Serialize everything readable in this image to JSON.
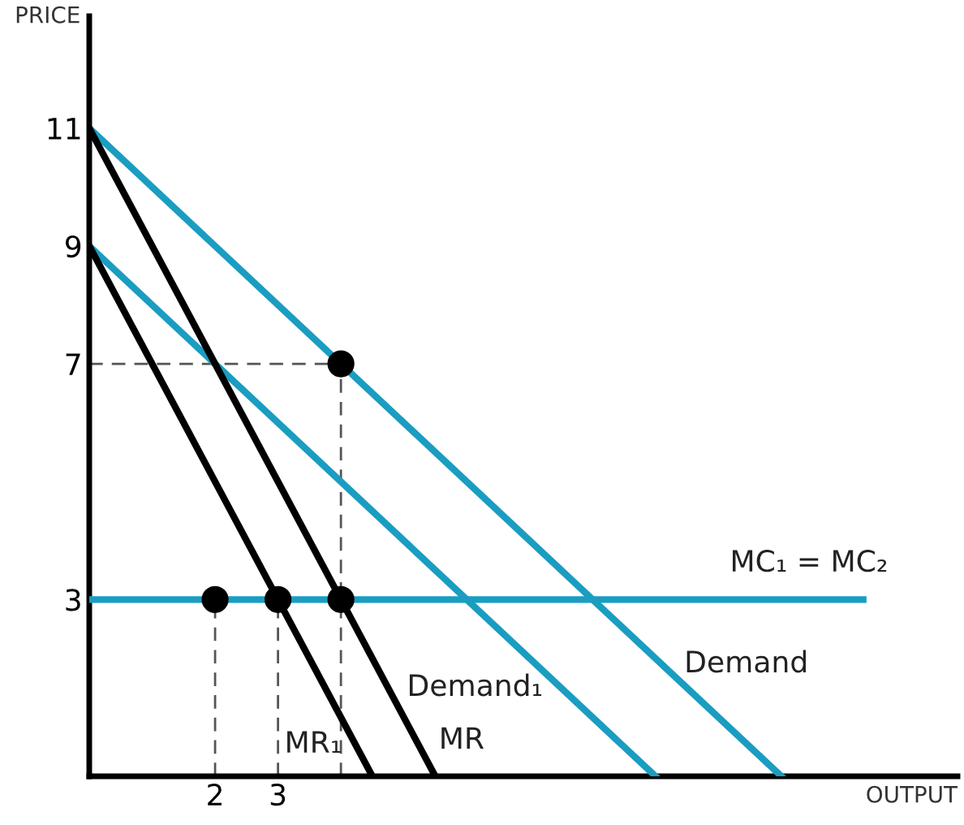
{
  "chart_data": {
    "type": "line",
    "xlabel": "OUTPUT",
    "ylabel": "PRICE",
    "xlim": [
      0,
      13.8
    ],
    "ylim": [
      0,
      12.9
    ],
    "xticks": [
      2,
      3
    ],
    "yticks": [
      3,
      7,
      9,
      11
    ],
    "grid": false,
    "legend": false,
    "series": [
      {
        "color": "#555555",
        "line_style": "dashed",
        "x": [
          0,
          4
        ],
        "values": [
          7,
          7
        ]
      },
      {
        "color": "#555555",
        "line_style": "dashed",
        "x": [
          4,
          4
        ],
        "values": [
          0,
          7
        ]
      },
      {
        "color": "#555555",
        "line_style": "dashed",
        "x": [
          3,
          3
        ],
        "values": [
          0,
          3
        ]
      },
      {
        "color": "#555555",
        "line_style": "dashed",
        "x": [
          2,
          2
        ],
        "values": [
          0,
          3
        ]
      },
      {
        "name": "Demand",
        "color": "#1a9dc1",
        "x": [
          0,
          11
        ],
        "values": [
          11,
          0
        ]
      },
      {
        "name": "Demand₁",
        "color": "#1a9dc1",
        "x": [
          0,
          9
        ],
        "values": [
          9,
          0
        ]
      },
      {
        "name": "MC₁ = MC₂",
        "color": "#1a9dc1",
        "x": [
          0,
          12.3
        ],
        "values": [
          3,
          3
        ]
      },
      {
        "name": "MR",
        "color": "#000000",
        "x": [
          0,
          5.5
        ],
        "values": [
          11,
          0
        ]
      },
      {
        "name": "MR₁",
        "color": "#000000",
        "x": [
          0,
          4.5
        ],
        "values": [
          9,
          0
        ]
      },
      {
        "type": "scatter",
        "color": "#000000",
        "marker": "circle",
        "x": [
          2,
          3,
          4,
          4
        ],
        "values": [
          3,
          3,
          3,
          7
        ]
      }
    ]
  }
}
